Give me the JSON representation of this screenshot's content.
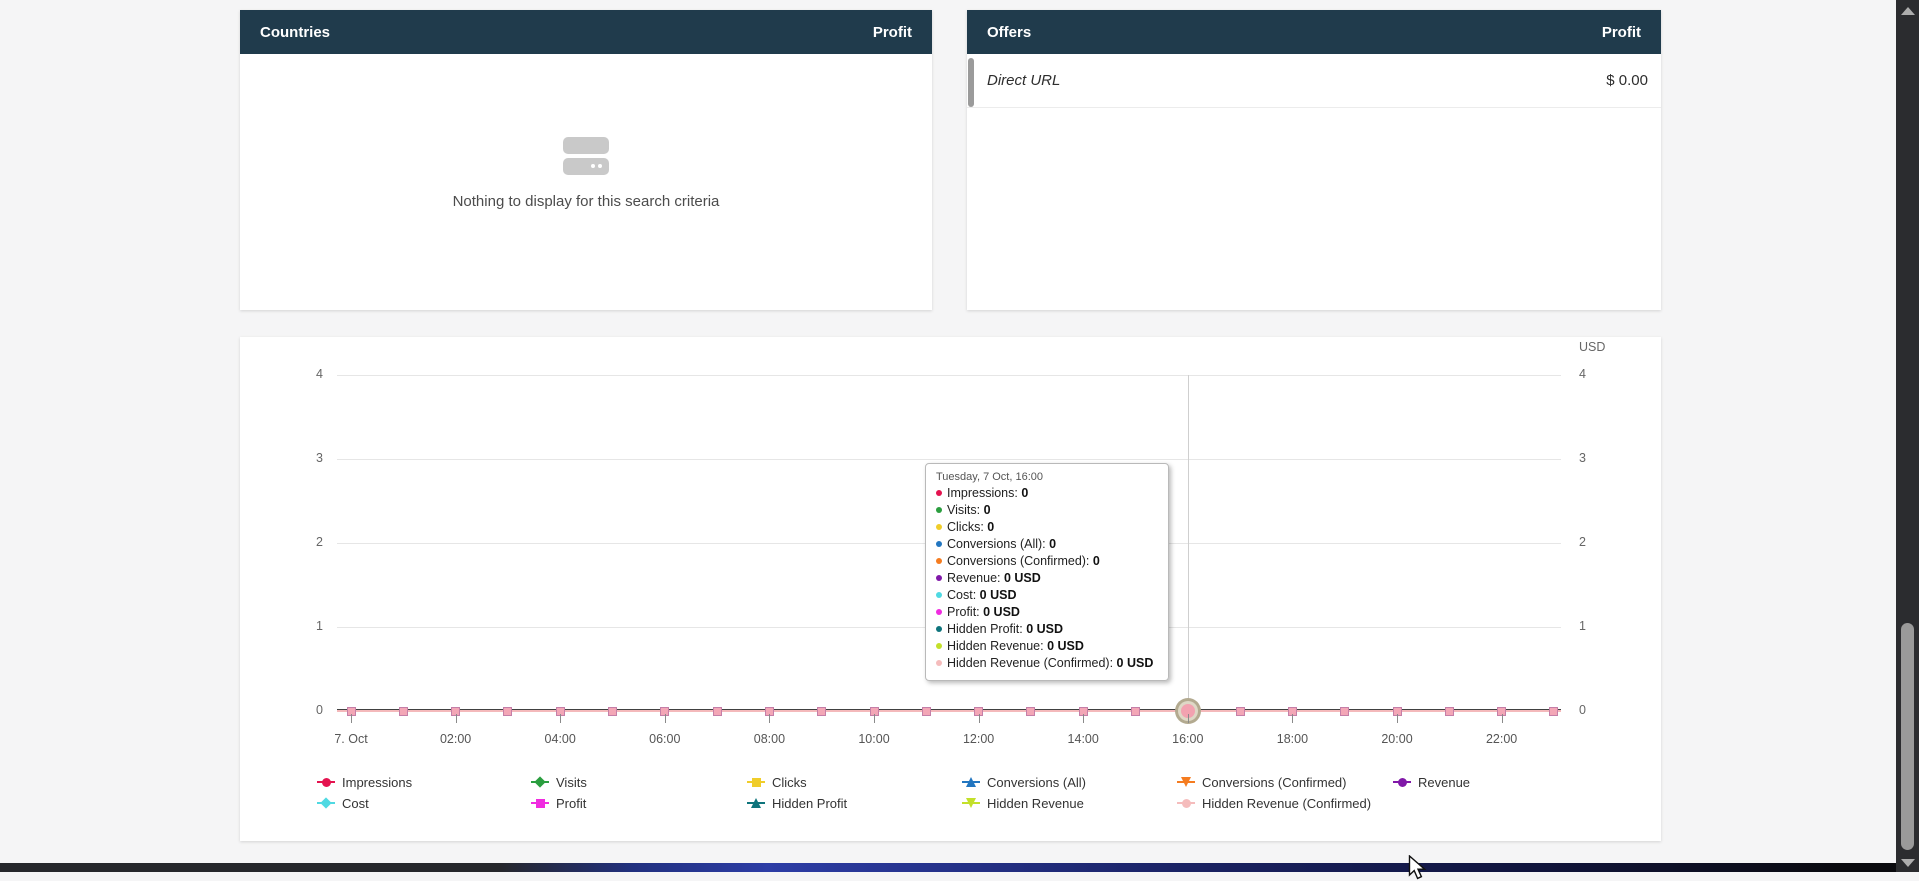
{
  "countries_panel": {
    "title": "Countries",
    "metric_header": "Profit",
    "empty_message": "Nothing to display for this search criteria"
  },
  "offers_panel": {
    "title": "Offers",
    "metric_header": "Profit",
    "rows": [
      {
        "name": "Direct URL",
        "profit": "$ 0.00"
      }
    ]
  },
  "chart": {
    "axis_unit_label": "USD",
    "y_tick_labels": [
      "4",
      "3",
      "2",
      "1",
      "0"
    ],
    "x_tick_labels": [
      "7. Oct",
      "02:00",
      "04:00",
      "06:00",
      "08:00",
      "10:00",
      "12:00",
      "14:00",
      "16:00",
      "18:00",
      "20:00",
      "22:00"
    ],
    "hovered_index": 16,
    "marker_color": "#f3a6b6",
    "tooltip": {
      "title": "Tuesday, 7 Oct, 16:00",
      "items": [
        {
          "label": "Impressions",
          "value": "0",
          "color": "#e4134f"
        },
        {
          "label": "Visits",
          "value": "0",
          "color": "#2b9e3f"
        },
        {
          "label": "Clicks",
          "value": "0",
          "color": "#f0cd2a"
        },
        {
          "label": "Conversions (All)",
          "value": "0",
          "color": "#2276c0"
        },
        {
          "label": "Conversions (Confirmed)",
          "value": "0",
          "color": "#f57c20"
        },
        {
          "label": "Revenue",
          "value": "0 USD",
          "color": "#8018a8"
        },
        {
          "label": "Cost",
          "value": "0 USD",
          "color": "#4fd9e2"
        },
        {
          "label": "Profit",
          "value": "0 USD",
          "color": "#f02ce0"
        },
        {
          "label": "Hidden Profit",
          "value": "0 USD",
          "color": "#0e747c"
        },
        {
          "label": "Hidden Revenue",
          "value": "0 USD",
          "color": "#c3e02a"
        },
        {
          "label": "Hidden Revenue (Confirmed)",
          "value": "0 USD",
          "color": "#f5bcbc"
        }
      ]
    },
    "legend": [
      {
        "label": "Impressions",
        "color": "#e4134f",
        "shape": "circle"
      },
      {
        "label": "Visits",
        "color": "#2b9e3f",
        "shape": "diamond"
      },
      {
        "label": "Clicks",
        "color": "#f0cd2a",
        "shape": "square"
      },
      {
        "label": "Conversions (All)",
        "color": "#2276c0",
        "shape": "triangle"
      },
      {
        "label": "Conversions (Confirmed)",
        "color": "#f57c20",
        "shape": "triangle-down"
      },
      {
        "label": "Revenue",
        "color": "#8018a8",
        "shape": "circle"
      },
      {
        "label": "Cost",
        "color": "#4fd9e2",
        "shape": "diamond"
      },
      {
        "label": "Profit",
        "color": "#f02ce0",
        "shape": "square"
      },
      {
        "label": "Hidden Profit",
        "color": "#0e747c",
        "shape": "triangle"
      },
      {
        "label": "Hidden Revenue",
        "color": "#c3e02a",
        "shape": "triangle-down"
      },
      {
        "label": "Hidden Revenue (Confirmed)",
        "color": "#f5bcbc",
        "shape": "circle"
      }
    ]
  },
  "chart_data": {
    "type": "line",
    "title": "",
    "date": "Tuesday, 7 Oct",
    "categories": [
      "00:00",
      "01:00",
      "02:00",
      "03:00",
      "04:00",
      "05:00",
      "06:00",
      "07:00",
      "08:00",
      "09:00",
      "10:00",
      "11:00",
      "12:00",
      "13:00",
      "14:00",
      "15:00",
      "16:00",
      "17:00",
      "18:00",
      "19:00",
      "20:00",
      "21:00",
      "22:00",
      "23:00"
    ],
    "x_axis_shown_labels": [
      "7. Oct",
      "02:00",
      "04:00",
      "06:00",
      "08:00",
      "10:00",
      "12:00",
      "14:00",
      "16:00",
      "18:00",
      "20:00",
      "22:00"
    ],
    "ylim": [
      0,
      4
    ],
    "y_ticks": [
      0,
      1,
      2,
      3,
      4
    ],
    "right_axis_unit": "USD",
    "grid": true,
    "legend_position": "bottom",
    "hovered_point": {
      "category": "16:00",
      "date": "Tuesday, 7 Oct"
    },
    "series": [
      {
        "name": "Impressions",
        "color": "#e4134f",
        "marker": "circle",
        "values": [
          0,
          0,
          0,
          0,
          0,
          0,
          0,
          0,
          0,
          0,
          0,
          0,
          0,
          0,
          0,
          0,
          0,
          0,
          0,
          0,
          0,
          0,
          0,
          0
        ]
      },
      {
        "name": "Visits",
        "color": "#2b9e3f",
        "marker": "diamond",
        "values": [
          0,
          0,
          0,
          0,
          0,
          0,
          0,
          0,
          0,
          0,
          0,
          0,
          0,
          0,
          0,
          0,
          0,
          0,
          0,
          0,
          0,
          0,
          0,
          0
        ]
      },
      {
        "name": "Clicks",
        "color": "#f0cd2a",
        "marker": "square",
        "values": [
          0,
          0,
          0,
          0,
          0,
          0,
          0,
          0,
          0,
          0,
          0,
          0,
          0,
          0,
          0,
          0,
          0,
          0,
          0,
          0,
          0,
          0,
          0,
          0
        ]
      },
      {
        "name": "Conversions (All)",
        "color": "#2276c0",
        "marker": "triangle",
        "values": [
          0,
          0,
          0,
          0,
          0,
          0,
          0,
          0,
          0,
          0,
          0,
          0,
          0,
          0,
          0,
          0,
          0,
          0,
          0,
          0,
          0,
          0,
          0,
          0
        ]
      },
      {
        "name": "Conversions (Confirmed)",
        "color": "#f57c20",
        "marker": "triangle-down",
        "values": [
          0,
          0,
          0,
          0,
          0,
          0,
          0,
          0,
          0,
          0,
          0,
          0,
          0,
          0,
          0,
          0,
          0,
          0,
          0,
          0,
          0,
          0,
          0,
          0
        ]
      },
      {
        "name": "Revenue",
        "color": "#8018a8",
        "marker": "circle",
        "values": [
          0,
          0,
          0,
          0,
          0,
          0,
          0,
          0,
          0,
          0,
          0,
          0,
          0,
          0,
          0,
          0,
          0,
          0,
          0,
          0,
          0,
          0,
          0,
          0
        ]
      },
      {
        "name": "Cost",
        "color": "#4fd9e2",
        "marker": "diamond",
        "values": [
          0,
          0,
          0,
          0,
          0,
          0,
          0,
          0,
          0,
          0,
          0,
          0,
          0,
          0,
          0,
          0,
          0,
          0,
          0,
          0,
          0,
          0,
          0,
          0
        ]
      },
      {
        "name": "Profit",
        "color": "#f02ce0",
        "marker": "square",
        "values": [
          0,
          0,
          0,
          0,
          0,
          0,
          0,
          0,
          0,
          0,
          0,
          0,
          0,
          0,
          0,
          0,
          0,
          0,
          0,
          0,
          0,
          0,
          0,
          0
        ]
      },
      {
        "name": "Hidden Profit",
        "color": "#0e747c",
        "marker": "triangle",
        "values": [
          0,
          0,
          0,
          0,
          0,
          0,
          0,
          0,
          0,
          0,
          0,
          0,
          0,
          0,
          0,
          0,
          0,
          0,
          0,
          0,
          0,
          0,
          0,
          0
        ]
      },
      {
        "name": "Hidden Revenue",
        "color": "#c3e02a",
        "marker": "triangle-down",
        "values": [
          0,
          0,
          0,
          0,
          0,
          0,
          0,
          0,
          0,
          0,
          0,
          0,
          0,
          0,
          0,
          0,
          0,
          0,
          0,
          0,
          0,
          0,
          0,
          0
        ]
      },
      {
        "name": "Hidden Revenue (Confirmed)",
        "color": "#f5bcbc",
        "marker": "circle",
        "values": [
          0,
          0,
          0,
          0,
          0,
          0,
          0,
          0,
          0,
          0,
          0,
          0,
          0,
          0,
          0,
          0,
          0,
          0,
          0,
          0,
          0,
          0,
          0,
          0
        ]
      }
    ]
  }
}
